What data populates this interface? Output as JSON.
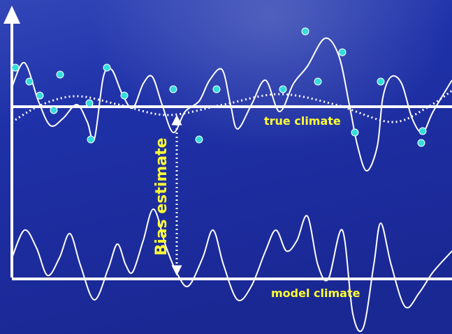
{
  "labels": {
    "true_climate": "true climate",
    "model_climate": "model climate",
    "bias": "Bias estimate"
  }
}
